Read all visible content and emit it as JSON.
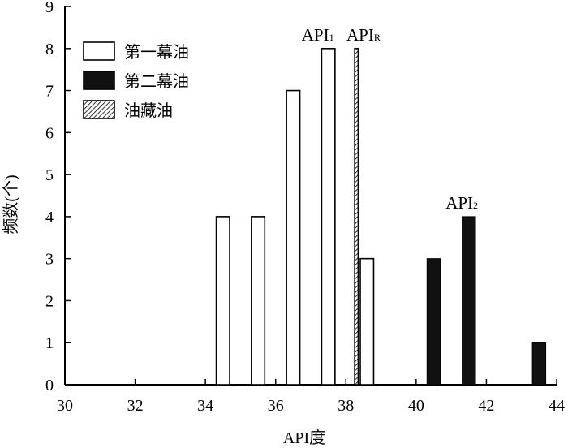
{
  "chart_data": {
    "type": "bar",
    "title": "",
    "xlabel": "API度",
    "ylabel": "频数(个)",
    "xlim": [
      30,
      44
    ],
    "ylim": [
      0,
      9
    ],
    "xticks": [
      30,
      32,
      34,
      36,
      38,
      40,
      42,
      44
    ],
    "yticks": [
      0,
      1,
      2,
      3,
      4,
      5,
      6,
      7,
      8,
      9
    ],
    "grid": false,
    "legend_position": "top-left",
    "series": [
      {
        "name": "第一幕油",
        "style": "hollow",
        "x": [
          34.5,
          35.5,
          36.5,
          37.5,
          38.6
        ],
        "values": [
          4,
          4,
          7,
          8,
          3
        ]
      },
      {
        "name": "第二幕油",
        "style": "solid",
        "x": [
          40.5,
          41.5,
          43.5
        ],
        "values": [
          3,
          4,
          1
        ]
      },
      {
        "name": "油藏油",
        "style": "hatched",
        "x": [
          38.3
        ],
        "values": [
          8
        ]
      }
    ],
    "annotations": [
      {
        "base": "API",
        "sub": "1",
        "x": 37.2,
        "y": 8
      },
      {
        "base": "API",
        "sub": "R",
        "x": 38.5,
        "y": 8
      },
      {
        "base": "API",
        "sub": "2",
        "x": 41.3,
        "y": 4
      }
    ]
  },
  "colors": {
    "axis": "#000000",
    "solid_fill": "#111111",
    "hollow_fill": "#ffffff"
  }
}
